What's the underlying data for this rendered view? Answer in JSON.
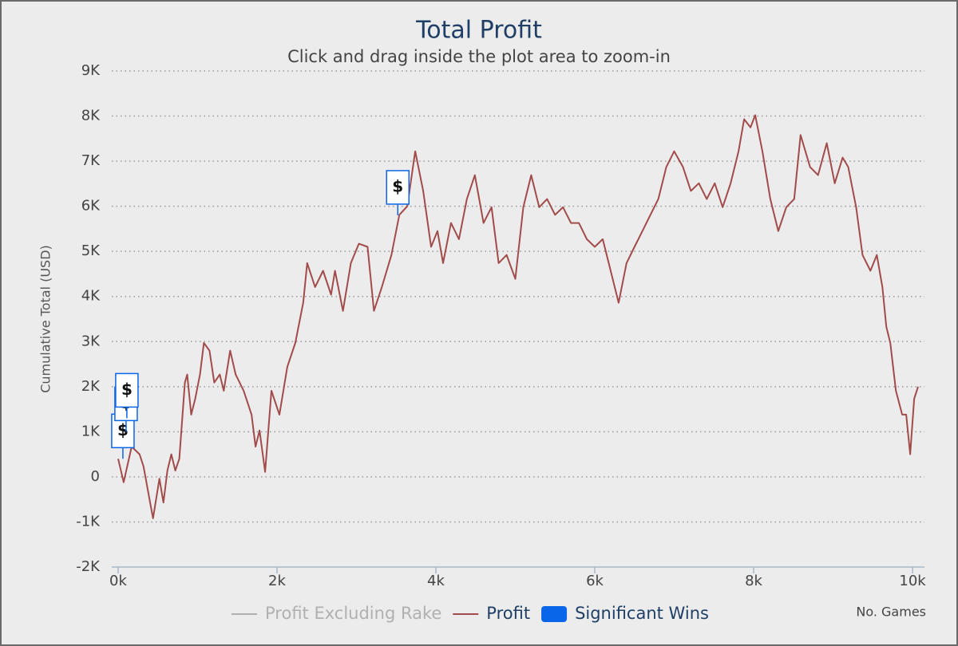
{
  "chart_data": {
    "type": "line",
    "title": "Total Profit",
    "subtitle": "Click and drag inside the plot area to zoom-in",
    "y_label": "Cumulative Total (USD)",
    "x_label": "No. Games",
    "xlim": [
      -80,
      10150
    ],
    "ylim": [
      -2000,
      9000
    ],
    "xticks": [
      {
        "value": 0,
        "label": "0k"
      },
      {
        "value": 2000,
        "label": "2k"
      },
      {
        "value": 4000,
        "label": "4k"
      },
      {
        "value": 6000,
        "label": "6k"
      },
      {
        "value": 8000,
        "label": "8k"
      },
      {
        "value": 10000,
        "label": "10k"
      }
    ],
    "yticks": [
      {
        "value": -2000,
        "label": "-2K"
      },
      {
        "value": -1000,
        "label": "-1K"
      },
      0,
      {
        "value": 1000,
        "label": "1K"
      },
      {
        "value": 2000,
        "label": "2K"
      },
      {
        "value": 3000,
        "label": "3K"
      },
      {
        "value": 4000,
        "label": "4K"
      },
      {
        "value": 5000,
        "label": "5K"
      },
      {
        "value": 6000,
        "label": "6K"
      },
      {
        "value": 7000,
        "label": "7K"
      },
      {
        "value": 8000,
        "label": "8K"
      },
      {
        "value": 9000,
        "label": "9K"
      }
    ],
    "grid": true,
    "series": [
      {
        "name": "Profit Excluding Rake",
        "color": "#b0b0b0",
        "visible": false
      },
      {
        "name": "Profit",
        "color": "#a24b4b",
        "visible": true,
        "x": [
          0,
          70,
          170,
          270,
          320,
          420,
          440,
          520,
          570,
          620,
          670,
          720,
          770,
          840,
          870,
          920,
          970,
          1030,
          1080,
          1150,
          1210,
          1280,
          1330,
          1410,
          1480,
          1580,
          1680,
          1730,
          1780,
          1850,
          1930,
          2030,
          2130,
          2230,
          2330,
          2380,
          2480,
          2580,
          2680,
          2730,
          2830,
          2930,
          3030,
          3140,
          3220,
          3320,
          3440,
          3540,
          3640,
          3740,
          3840,
          3940,
          4020,
          4090,
          4190,
          4290,
          4390,
          4490,
          4600,
          4700,
          4790,
          4890,
          5000,
          5100,
          5200,
          5300,
          5400,
          5500,
          5600,
          5700,
          5800,
          5900,
          6000,
          6100,
          6200,
          6300,
          6400,
          6500,
          6600,
          6700,
          6800,
          6900,
          7000,
          7110,
          7210,
          7310,
          7410,
          7510,
          7610,
          7710,
          7810,
          7880,
          7960,
          8020,
          8110,
          8210,
          8310,
          8410,
          8510,
          8590,
          8710,
          8810,
          8920,
          9020,
          9120,
          9190,
          9290,
          9370,
          9470,
          9550,
          9620,
          9670,
          9720,
          9790,
          9870,
          9920,
          9970,
          10020,
          10070
        ],
        "values": [
          400,
          -120,
          670,
          500,
          230,
          -740,
          -920,
          -40,
          -570,
          140,
          500,
          140,
          400,
          2090,
          2270,
          1380,
          1730,
          2270,
          2970,
          2800,
          2090,
          2270,
          1910,
          2800,
          2270,
          1910,
          1380,
          670,
          1030,
          110,
          1910,
          1380,
          2440,
          2970,
          3860,
          4740,
          4210,
          4570,
          4040,
          4570,
          3680,
          4740,
          5170,
          5100,
          3680,
          4210,
          4920,
          5810,
          6000,
          7220,
          6340,
          5100,
          5450,
          4740,
          5630,
          5270,
          6160,
          6690,
          5630,
          5980,
          4740,
          4920,
          4390,
          5980,
          6690,
          5980,
          6160,
          5810,
          5980,
          5630,
          5630,
          5270,
          5100,
          5270,
          4570,
          3860,
          4740,
          5100,
          5450,
          5810,
          6160,
          6870,
          7220,
          6870,
          6340,
          6510,
          6160,
          6510,
          5980,
          6510,
          7220,
          7930,
          7750,
          8020,
          7220,
          6160,
          5450,
          5980,
          6160,
          7580,
          6870,
          6690,
          7400,
          6510,
          7080,
          6870,
          5980,
          4920,
          4570,
          4920,
          4210,
          3330,
          2970,
          1910,
          1380,
          1380,
          500,
          1730,
          2000
        ]
      },
      {
        "name": "Significant Wins",
        "color": "#0a66e8",
        "type": "flags",
        "visible": true,
        "label": "$",
        "x": [
          60,
          100,
          110,
          3520
        ],
        "values": [
          400,
          1000,
          1300,
          5800
        ]
      }
    ]
  }
}
